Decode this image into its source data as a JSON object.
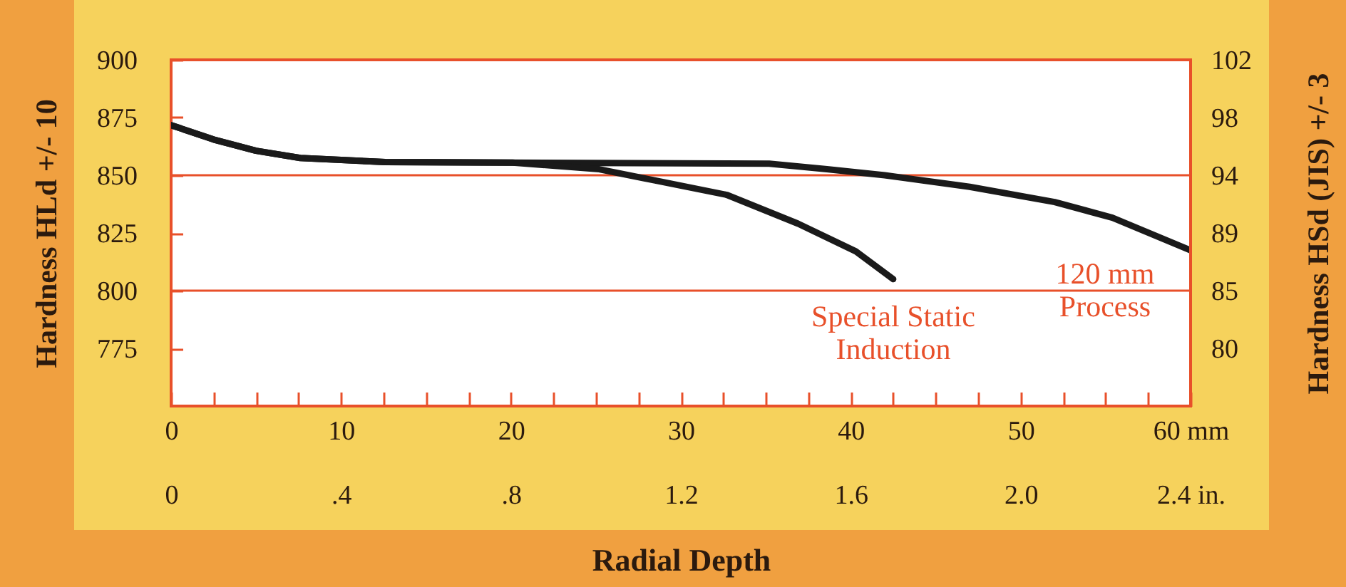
{
  "chart_data": {
    "type": "line",
    "xlabel": "Radial Depth",
    "ylabel": "Hardness HLd +/- 10",
    "y2label": "Hardness HSd (JIS) +/- 3",
    "xlim": [
      0,
      60
    ],
    "xticks": [
      0,
      {
        "value": 2.5,
        "label": null
      },
      {
        "value": 5,
        "label": null
      },
      {
        "value": 7.5,
        "label": null
      },
      10,
      {
        "value": 12.5,
        "label": null
      },
      {
        "value": 15,
        "label": null
      },
      {
        "value": 17.5,
        "label": null
      },
      20,
      {
        "value": 22.5,
        "label": null
      },
      {
        "value": 25,
        "label": null
      },
      {
        "value": 27.5,
        "label": null
      },
      30,
      {
        "value": 32.5,
        "label": null
      },
      {
        "value": 35,
        "label": null
      },
      {
        "value": 37.5,
        "label": null
      },
      40,
      {
        "value": 42.5,
        "label": null
      },
      {
        "value": 45,
        "label": null
      },
      {
        "value": 47.5,
        "label": null
      },
      50,
      {
        "value": 52.5,
        "label": null
      },
      {
        "value": 55,
        "label": null
      },
      {
        "value": 57.5,
        "label": null
      },
      {
        "value": 60,
        "label": "60 mm"
      }
    ],
    "x2lim": [
      0,
      2.4
    ],
    "x2ticks": [
      0,
      {
        "value": 0.4,
        "label": ".4"
      },
      {
        "value": 0.8,
        "label": ".8"
      },
      1.2,
      1.6,
      {
        "value": 2,
        "label": "2.0"
      },
      {
        "value": 2.4,
        "label": "2.4 in."
      }
    ],
    "ylim": [
      750,
      900
    ],
    "yticks": [
      900,
      875,
      850,
      825,
      800,
      775
    ],
    "y2lim": [
      76,
      102
    ],
    "y2ticks": [
      102,
      98,
      94,
      89,
      85,
      80
    ],
    "ref_lines": [
      {
        "axis": "y",
        "value": 850,
        "color": "#e8502a"
      },
      {
        "axis": "y",
        "value": 800,
        "color": "#e8502a"
      }
    ],
    "marker": "none",
    "line_style": "solid",
    "grid": false,
    "series": [
      {
        "name": "120 mm Process",
        "color": "#1a1a1a",
        "x": [
          0,
          2.5,
          5,
          7.6,
          12.6,
          35.2,
          38.6,
          42,
          47,
          52,
          55.4,
          60
        ],
        "values": [
          871.7,
          865.5,
          860.6,
          857.5,
          855.7,
          855,
          852.6,
          850,
          845,
          838.4,
          831.6,
          817.5
        ]
      },
      {
        "name": "Special Static Induction",
        "color": "#1a1a1a",
        "x": [
          0,
          2.5,
          5,
          7.6,
          12.6,
          20.1,
          25.2,
          28.5,
          32.7,
          36.9,
          40.3,
          42.5
        ],
        "values": [
          871.7,
          865.5,
          860.6,
          857.5,
          855.7,
          855.5,
          852.6,
          847.7,
          841.5,
          829,
          817,
          805
        ]
      }
    ]
  }
}
